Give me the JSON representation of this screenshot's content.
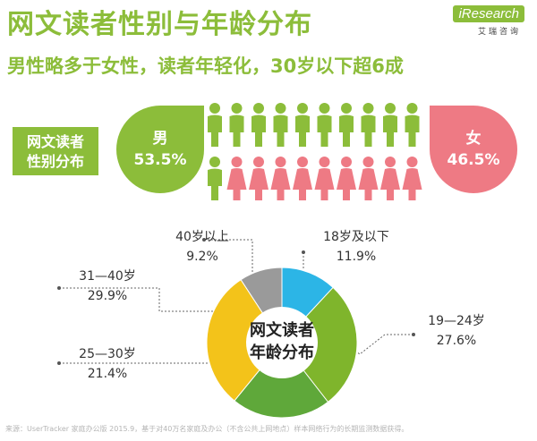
{
  "header": {
    "title": "网文读者性别与年龄分布",
    "subtitle": "男性略多于女性，读者年轻化，30岁以下超6成",
    "logo_main": "iResearch",
    "logo_sub": "艾瑞咨询"
  },
  "gender": {
    "section_label_line1": "网文读者",
    "section_label_line2": "性别分布",
    "male_label": "男",
    "male_pct": "53.5%",
    "female_label": "女",
    "female_pct": "46.5%"
  },
  "age": {
    "center_line1": "网文读者",
    "center_line2": "年龄分布"
  },
  "source": "来源：UserTracker 家庭办公版 2015.9，基于对40万名家庭及办公（不含公共上网地点）样本网络行为的长期监测数据获得。",
  "colors": {
    "accent_green": "#8cbd3a",
    "female_pink": "#ee7a84",
    "age_18_below": "#2cb5e6",
    "age_19_24": "#7fb52c",
    "age_25_30": "#5fa83a",
    "age_31_40": "#f3c31a",
    "age_40_above": "#9a9a9a"
  },
  "chart_data": [
    {
      "type": "pie",
      "title": "网文读者性别分布",
      "categories": [
        "男",
        "女"
      ],
      "values": [
        53.5,
        46.5
      ],
      "unit": "%"
    },
    {
      "type": "pie",
      "title": "网文读者年龄分布",
      "categories": [
        "18岁及以下",
        "19—24岁",
        "25—30岁",
        "31—40岁",
        "40岁以上"
      ],
      "values": [
        11.9,
        27.6,
        21.4,
        29.9,
        9.2
      ],
      "labels": [
        "11.9%",
        "27.6%",
        "21.4%",
        "29.9%",
        "9.2%"
      ],
      "unit": "%"
    }
  ]
}
